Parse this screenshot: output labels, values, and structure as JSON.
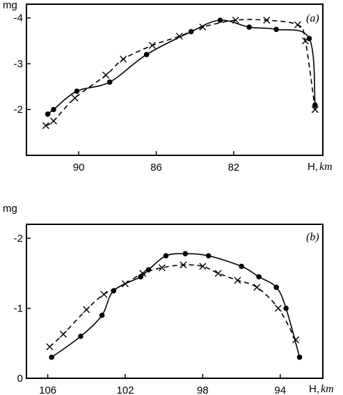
{
  "chart_data": [
    {
      "type": "line",
      "panel_label": "(a)",
      "ylabel": "mg",
      "xlabel_main": "H,",
      "xlabel_unit": "km",
      "x_reversed": true,
      "xlim": [
        92.7,
        77.4
      ],
      "ylim": [
        -1,
        -4.3
      ],
      "xticks": [
        90,
        86,
        82
      ],
      "xtick_labels": [
        "90",
        "86",
        "82"
      ],
      "yticks": [
        -2,
        -3,
        -4
      ],
      "ytick_labels": [
        "-2",
        "-3",
        "-4"
      ],
      "series": [
        {
          "marker": "dot",
          "line": "solid",
          "x": [
            91.6,
            91.3,
            90.1,
            88.4,
            86.5,
            84.2,
            82.7,
            81.2,
            79.8,
            78.1,
            77.8
          ],
          "y": [
            -1.9,
            -2.0,
            -2.4,
            -2.6,
            -3.2,
            -3.7,
            -3.95,
            -3.8,
            -3.75,
            -3.55,
            -2.1
          ]
        },
        {
          "marker": "cross",
          "line": "dashed",
          "x": [
            91.7,
            91.3,
            90.2,
            88.6,
            87.7,
            86.2,
            84.8,
            83.6,
            81.9,
            80.3,
            78.7,
            78.3,
            77.8
          ],
          "y": [
            -1.65,
            -1.75,
            -2.25,
            -2.75,
            -3.1,
            -3.4,
            -3.6,
            -3.8,
            -3.95,
            -3.95,
            -3.85,
            -3.5,
            -2.0
          ]
        }
      ]
    },
    {
      "type": "line",
      "panel_label": "(b)",
      "ylabel": "mg",
      "xlabel_main": "H,",
      "xlabel_unit": "km",
      "x_reversed": true,
      "xlim": [
        107.1,
        91.8
      ],
      "ylim": [
        0,
        -2.2
      ],
      "xticks": [
        106,
        102,
        98,
        94
      ],
      "xtick_labels": [
        "106",
        "102",
        "98",
        "94"
      ],
      "yticks": [
        0,
        -1,
        -2
      ],
      "ytick_labels": [
        "0",
        "-1",
        "-2"
      ],
      "series": [
        {
          "marker": "dot",
          "line": "solid",
          "x": [
            105.8,
            104.3,
            103.2,
            102.6,
            101.2,
            100.8,
            99.9,
            98.9,
            97.7,
            96.0,
            95.1,
            94.2,
            93.7,
            93.0
          ],
          "y": [
            -0.3,
            -0.6,
            -0.9,
            -1.25,
            -1.45,
            -1.55,
            -1.75,
            -1.78,
            -1.75,
            -1.6,
            -1.45,
            -1.3,
            -1.0,
            -0.3
          ]
        },
        {
          "marker": "cross",
          "line": "dashed",
          "x": [
            105.9,
            105.2,
            104.0,
            103.1,
            102.0,
            101.1,
            100.1,
            99.0,
            98.0,
            97.2,
            96.2,
            95.2,
            94.1,
            93.2
          ],
          "y": [
            -0.45,
            -0.63,
            -0.98,
            -1.2,
            -1.35,
            -1.5,
            -1.58,
            -1.62,
            -1.6,
            -1.5,
            -1.4,
            -1.3,
            -1.0,
            -0.55
          ]
        }
      ]
    }
  ]
}
